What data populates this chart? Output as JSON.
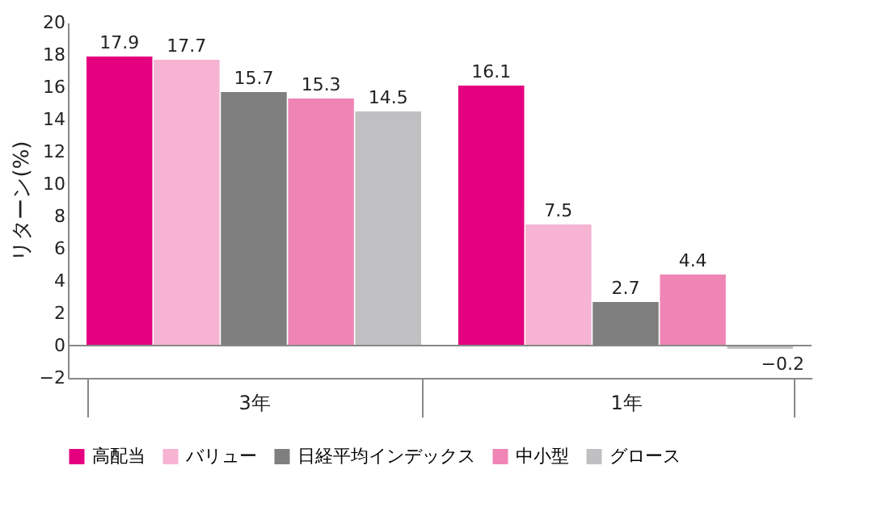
{
  "chart_data": {
    "type": "bar",
    "ylabel": "リターン(%)",
    "categories": [
      "3年",
      "1年"
    ],
    "series": [
      {
        "name": "高配当",
        "color": "#e4007f",
        "values": [
          17.9,
          16.1
        ]
      },
      {
        "name": "バリュー",
        "color": "#f6b3d2",
        "values": [
          17.7,
          7.5
        ]
      },
      {
        "name": "日経平均インデックス",
        "color": "#7f7f7f",
        "values": [
          15.7,
          2.7
        ]
      },
      {
        "name": "中小型",
        "color": "#ef85b5",
        "values": [
          15.3,
          4.4
        ]
      },
      {
        "name": "グロース",
        "color": "#c0c0c2",
        "values": [
          14.5,
          -0.2
        ]
      }
    ],
    "ylim": [
      -2,
      20
    ],
    "yticks": [
      -2,
      0,
      2,
      4,
      6,
      8,
      10,
      12,
      14,
      16,
      18,
      20
    ],
    "ref_lines": [
      {
        "axis": "y",
        "value": 0,
        "color": "#888888"
      }
    ],
    "data_labels": true,
    "legend": "bottom",
    "grid": false
  }
}
